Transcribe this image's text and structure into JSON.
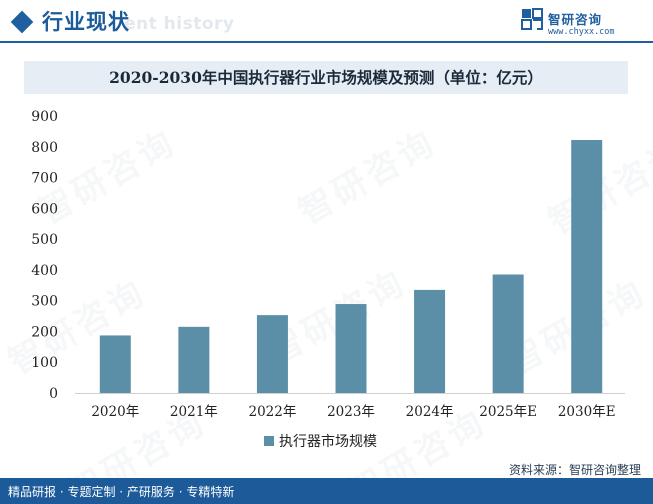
{
  "header": {
    "title": "行业现状",
    "watermark_text": "ent history"
  },
  "brand": {
    "name": "智研咨询",
    "url": "www.chyxx.com",
    "logo_icon": "chyxx-logo-icon"
  },
  "watermark": {
    "text": "智研咨询"
  },
  "chart_data": {
    "type": "bar",
    "title": "2020-2030年中国执行器行业市场规模及预测（单位：亿元）",
    "categories": [
      "2020年",
      "2021年",
      "2022年",
      "2023年",
      "2024年",
      "2025年E",
      "2030年E"
    ],
    "series": [
      {
        "name": "执行器市场规模",
        "values": [
          187,
          215,
          253,
          289,
          335,
          385,
          822
        ]
      }
    ],
    "ylim": [
      0,
      900
    ],
    "yticks": [
      0,
      100,
      200,
      300,
      400,
      500,
      600,
      700,
      800,
      900
    ],
    "xlabel": "",
    "ylabel": "",
    "grid": false,
    "legend": "bottom-center",
    "bar_color": "#5b8fa8"
  },
  "footer": {
    "source": "资料来源：智研咨询整理",
    "tagline": "精品研报 · 专题定制 · 产研服务 · 专精特新",
    "bar_color": "#1c5a99"
  }
}
